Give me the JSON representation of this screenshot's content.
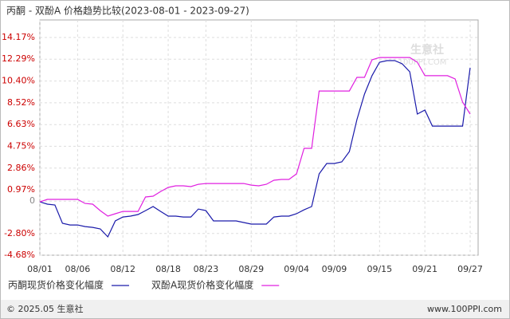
{
  "chart_data": {
    "type": "line",
    "title": "丙酮 - 双酚A 价格趋势比较(2023-08-01 - 2023-09-27)",
    "categories": [
      "08/01",
      null,
      null,
      null,
      null,
      "08/06",
      null,
      null,
      null,
      null,
      null,
      "08/12",
      null,
      null,
      null,
      null,
      null,
      "08/18",
      null,
      null,
      null,
      null,
      "08/23",
      null,
      null,
      null,
      null,
      null,
      "08/29",
      null,
      null,
      null,
      null,
      null,
      "09/04",
      null,
      null,
      null,
      null,
      "09/09",
      null,
      null,
      null,
      null,
      null,
      "09/15",
      null,
      null,
      null,
      null,
      null,
      "09/21",
      null,
      null,
      null,
      null,
      null,
      "09/27"
    ],
    "series": [
      {
        "name": "丙酮现货价格变化幅度",
        "color": "#1a1aaa",
        "values": [
          -0.06,
          -0.26,
          -0.33,
          -1.92,
          -2.06,
          -2.06,
          -2.2,
          -2.27,
          -2.4,
          -3.09,
          -1.71,
          -1.37,
          -1.3,
          -1.16,
          -0.82,
          -0.47,
          -0.89,
          -1.3,
          -1.3,
          -1.37,
          -1.37,
          -0.68,
          -0.82,
          -1.71,
          -1.71,
          -1.71,
          -1.71,
          -1.85,
          -1.99,
          -1.99,
          -1.99,
          -1.37,
          -1.3,
          -1.3,
          -1.09,
          -0.75,
          -0.47,
          2.36,
          3.26,
          3.26,
          3.4,
          4.29,
          7.06,
          9.27,
          10.86,
          12.03,
          12.17,
          12.17,
          11.89,
          11.2,
          7.54,
          7.89,
          6.5,
          6.5,
          6.5,
          6.5,
          6.5,
          11.55
        ]
      },
      {
        "name": "双酚A现货价格变化幅度",
        "color": "#e020e0",
        "values": [
          -0.06,
          0.15,
          0.15,
          0.15,
          0.15,
          0.15,
          -0.2,
          -0.26,
          -0.82,
          -1.3,
          -1.09,
          -0.89,
          -0.89,
          -0.89,
          0.36,
          0.43,
          0.84,
          1.19,
          1.33,
          1.33,
          1.26,
          1.46,
          1.53,
          1.53,
          1.53,
          1.53,
          1.53,
          1.53,
          1.39,
          1.33,
          1.46,
          1.81,
          1.88,
          1.88,
          2.36,
          4.57,
          4.57,
          9.54,
          9.54,
          9.54,
          9.54,
          9.54,
          10.72,
          10.72,
          12.24,
          12.44,
          12.44,
          12.44,
          12.44,
          12.44,
          12.03,
          10.86,
          10.86,
          10.86,
          10.86,
          10.58,
          8.58,
          7.54
        ]
      }
    ],
    "ylim": [
      -4.68,
      14.17
    ],
    "yticks": [
      {
        "value": 14.17,
        "label": "14.17%"
      },
      {
        "value": 12.29,
        "label": "12.29%"
      },
      {
        "value": 10.4,
        "label": "10.40%"
      },
      {
        "value": 8.52,
        "label": "8.52%"
      },
      {
        "value": 6.63,
        "label": "6.63%"
      },
      {
        "value": 4.75,
        "label": "4.75%"
      },
      {
        "value": 2.86,
        "label": "2.86%"
      },
      {
        "value": 0.97,
        "label": "0.97%"
      },
      0,
      {
        "value": -2.8,
        "label": "-2.80%"
      },
      {
        "value": -4.68,
        "label": "-4.68%"
      }
    ],
    "grid": true,
    "legend": "bottom"
  },
  "watermark": {
    "name": "生意社",
    "site": "100PPI.COM"
  },
  "footer": {
    "left": "© 2025.05 生意社",
    "right": "www.100PPI.com"
  }
}
